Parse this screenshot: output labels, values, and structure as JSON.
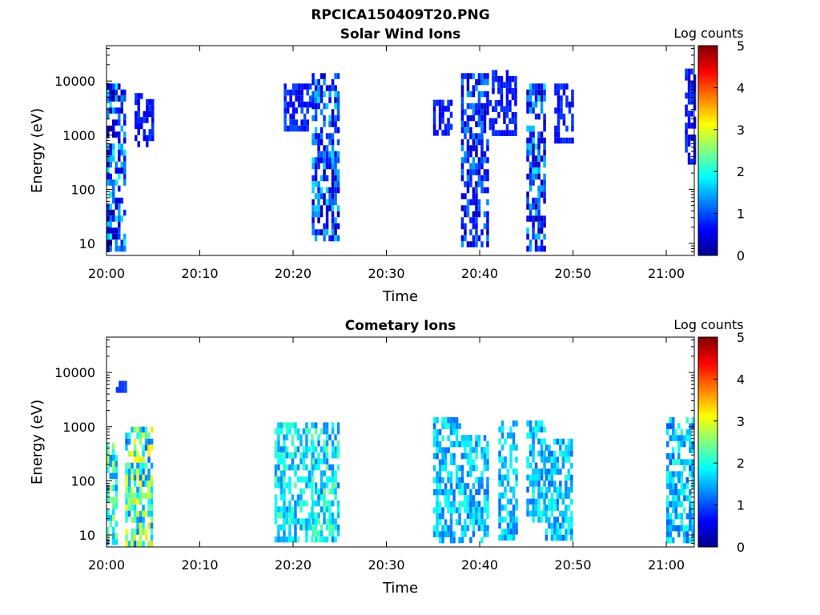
{
  "figure_title": "RPCICA150409T20.PNG",
  "colormap": [
    "#00008f",
    "#0000ff",
    "#0080ff",
    "#00ffff",
    "#80ff80",
    "#ffff00",
    "#ff8000",
    "#ff0000",
    "#800000"
  ],
  "chart_data": [
    {
      "type": "heatmap",
      "title": "Solar Wind Ions",
      "xlabel": "Time",
      "ylabel": "Energy (eV)",
      "y_scale": "log",
      "ylim": [
        6,
        45000
      ],
      "xlim": [
        "20:00",
        "21:03"
      ],
      "x_ticks": [
        "20:00",
        "20:10",
        "20:20",
        "20:30",
        "20:40",
        "20:50",
        "21:00"
      ],
      "y_ticks": [
        "10",
        "100",
        "1000",
        "10000"
      ],
      "colorbar": {
        "label": "Log counts",
        "range": [
          0,
          5
        ],
        "ticks": [
          "0",
          "1",
          "2",
          "3",
          "4",
          "5"
        ]
      },
      "clusters": [
        {
          "time_range": [
            "20:00",
            "20:02"
          ],
          "energy_range": [
            8,
            9000
          ],
          "typical_log_counts": 0.8,
          "peak_log_counts": 2.2
        },
        {
          "time_range": [
            "20:03",
            "20:05"
          ],
          "energy_range": [
            700,
            6000
          ],
          "typical_log_counts": 0.7,
          "peak_log_counts": 1.0
        },
        {
          "time_range": [
            "20:19",
            "20:22"
          ],
          "energy_range": [
            1200,
            9000
          ],
          "typical_log_counts": 0.8,
          "peak_log_counts": 1.2
        },
        {
          "time_range": [
            "20:22",
            "20:25"
          ],
          "energy_range": [
            13,
            14000
          ],
          "typical_log_counts": 0.9,
          "peak_log_counts": 2.0
        },
        {
          "time_range": [
            "20:35",
            "20:37"
          ],
          "energy_range": [
            1100,
            4500
          ],
          "typical_log_counts": 0.7,
          "peak_log_counts": 1.0
        },
        {
          "time_range": [
            "20:38",
            "20:41"
          ],
          "energy_range": [
            9,
            14000
          ],
          "typical_log_counts": 0.8,
          "peak_log_counts": 1.6
        },
        {
          "time_range": [
            "20:41",
            "20:44"
          ],
          "energy_range": [
            1000,
            16000
          ],
          "typical_log_counts": 0.7,
          "peak_log_counts": 1.0
        },
        {
          "time_range": [
            "20:45",
            "20:47"
          ],
          "energy_range": [
            7,
            9000
          ],
          "typical_log_counts": 0.9,
          "peak_log_counts": 2.0
        },
        {
          "time_range": [
            "20:48",
            "20:50"
          ],
          "energy_range": [
            700,
            9000
          ],
          "typical_log_counts": 0.7,
          "peak_log_counts": 1.0
        },
        {
          "time_range": [
            "21:02",
            "21:03"
          ],
          "energy_range": [
            300,
            17000
          ],
          "typical_log_counts": 0.7,
          "peak_log_counts": 1.0
        }
      ]
    },
    {
      "type": "heatmap",
      "title": "Cometary Ions",
      "xlabel": "Time",
      "ylabel": "Energy (eV)",
      "y_scale": "log",
      "ylim": [
        6,
        45000
      ],
      "xlim": [
        "20:00",
        "21:03"
      ],
      "x_ticks": [
        "20:00",
        "20:10",
        "20:20",
        "20:30",
        "20:40",
        "20:50",
        "21:00"
      ],
      "y_ticks": [
        "10",
        "100",
        "1000",
        "10000"
      ],
      "colorbar": {
        "label": "Log counts",
        "range": [
          0,
          5
        ],
        "ticks": [
          "0",
          "1",
          "2",
          "3",
          "4",
          "5"
        ]
      },
      "clusters": [
        {
          "time_range": [
            "20:00",
            "20:01"
          ],
          "energy_range": [
            8,
            500
          ],
          "typical_log_counts": 2.0,
          "peak_log_counts": 3.0
        },
        {
          "time_range": [
            "20:01",
            "20:02"
          ],
          "energy_range": [
            4500,
            7000
          ],
          "typical_log_counts": 0.9,
          "peak_log_counts": 1.0
        },
        {
          "time_range": [
            "20:02",
            "20:05"
          ],
          "energy_range": [
            7,
            1000
          ],
          "typical_log_counts": 2.2,
          "peak_log_counts": 3.6
        },
        {
          "time_range": [
            "20:18",
            "20:22"
          ],
          "energy_range": [
            8,
            1200
          ],
          "typical_log_counts": 1.8,
          "peak_log_counts": 2.5
        },
        {
          "time_range": [
            "20:22",
            "20:25"
          ],
          "energy_range": [
            8,
            1200
          ],
          "typical_log_counts": 1.8,
          "peak_log_counts": 2.6
        },
        {
          "time_range": [
            "20:35",
            "20:38"
          ],
          "energy_range": [
            8,
            1500
          ],
          "typical_log_counts": 1.6,
          "peak_log_counts": 2.2
        },
        {
          "time_range": [
            "20:38",
            "20:41"
          ],
          "energy_range": [
            8,
            700
          ],
          "typical_log_counts": 1.6,
          "peak_log_counts": 2.2
        },
        {
          "time_range": [
            "20:42",
            "20:44"
          ],
          "energy_range": [
            8,
            1300
          ],
          "typical_log_counts": 1.6,
          "peak_log_counts": 2.2
        },
        {
          "time_range": [
            "20:45",
            "20:47"
          ],
          "energy_range": [
            20,
            1300
          ],
          "typical_log_counts": 1.6,
          "peak_log_counts": 2.2
        },
        {
          "time_range": [
            "20:47",
            "20:50"
          ],
          "energy_range": [
            8,
            600
          ],
          "typical_log_counts": 1.6,
          "peak_log_counts": 2.2
        },
        {
          "time_range": [
            "21:00",
            "21:03"
          ],
          "energy_range": [
            8,
            1500
          ],
          "typical_log_counts": 1.6,
          "peak_log_counts": 2.3
        }
      ]
    }
  ]
}
